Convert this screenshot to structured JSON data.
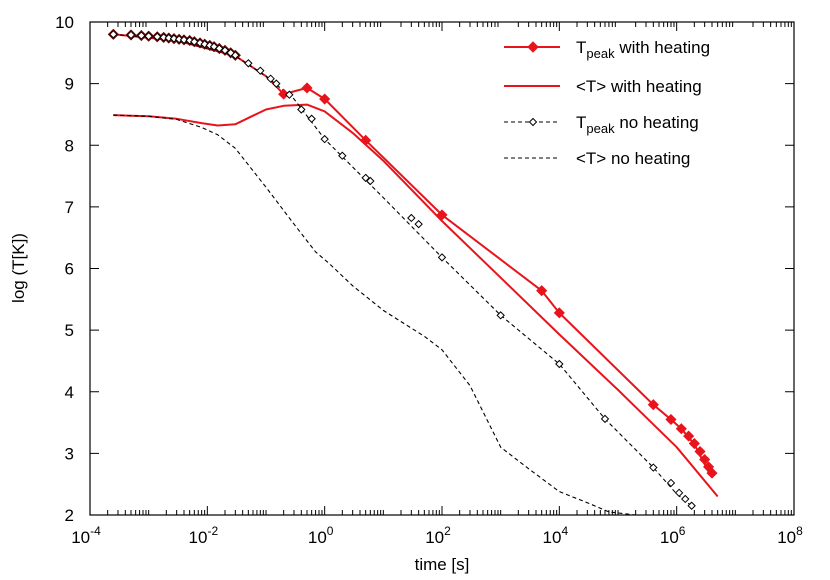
{
  "chart_data": {
    "type": "line",
    "title": "",
    "xlabel": "time [s]",
    "ylabel": "log (T[K])",
    "xscale": "log",
    "xlim": [
      0.0001,
      100000000
    ],
    "ylim": [
      2,
      10
    ],
    "x_ticks": [
      {
        "base": "10",
        "exp": "-4"
      },
      {
        "base": "10",
        "exp": "-2"
      },
      {
        "base": "10",
        "exp": "0"
      },
      {
        "base": "10",
        "exp": "2"
      },
      {
        "base": "10",
        "exp": "4"
      },
      {
        "base": "10",
        "exp": "6"
      },
      {
        "base": "10",
        "exp": "8"
      }
    ],
    "y_ticks": [
      "2",
      "3",
      "4",
      "5",
      "6",
      "7",
      "8",
      "9",
      "10"
    ],
    "grid": false,
    "legend_position": "top-right",
    "series": [
      {
        "name": "T_peak with heating",
        "legend_main": "T",
        "legend_sub": "peak",
        "legend_rest": " with heating",
        "color": "#e8141c",
        "dash": "solid",
        "marker": "diamond-filled",
        "x": [
          0.00025,
          0.003,
          0.03,
          0.1,
          0.2,
          0.5,
          1,
          5,
          100,
          5000,
          10000,
          400000,
          800000,
          1200000,
          2000000,
          3500000
        ],
        "y": [
          9.8,
          9.7,
          9.45,
          9.12,
          8.83,
          8.93,
          8.75,
          8.08,
          6.87,
          5.64,
          5.28,
          3.79,
          3.55,
          3.4,
          3.15,
          2.7
        ],
        "marker_x": [
          0.00025,
          0.0005,
          0.00075,
          0.001,
          0.0014,
          0.0018,
          0.0022,
          0.0027,
          0.0033,
          0.004,
          0.005,
          0.006,
          0.0075,
          0.009,
          0.011,
          0.013,
          0.016,
          0.02,
          0.025,
          0.03,
          0.2,
          0.5,
          1,
          5,
          100,
          5000,
          10000,
          400000,
          800000,
          1200000,
          1600000,
          2000000,
          2500000,
          3000000,
          3500000,
          4000000
        ],
        "marker_y": [
          9.8,
          9.79,
          9.78,
          9.77,
          9.76,
          9.75,
          9.74,
          9.73,
          9.72,
          9.71,
          9.7,
          9.68,
          9.66,
          9.64,
          9.62,
          9.6,
          9.57,
          9.54,
          9.5,
          9.46,
          8.83,
          8.93,
          8.75,
          8.08,
          6.87,
          5.64,
          5.28,
          3.79,
          3.55,
          3.4,
          3.28,
          3.16,
          3.03,
          2.9,
          2.78,
          2.68
        ]
      },
      {
        "name": "<T> with heating",
        "legend_main": "<T> with heating",
        "legend_sub": "",
        "legend_rest": "",
        "color": "#e8141c",
        "dash": "solid",
        "marker": "none",
        "x": [
          0.00025,
          0.001,
          0.003,
          0.008,
          0.015,
          0.03,
          0.06,
          0.1,
          0.2,
          0.5,
          1,
          3,
          10,
          100,
          1000,
          10000,
          100000,
          1000000,
          5000000
        ],
        "y": [
          8.49,
          8.47,
          8.43,
          8.36,
          8.32,
          8.34,
          8.48,
          8.58,
          8.64,
          8.66,
          8.55,
          8.2,
          7.75,
          6.77,
          5.85,
          4.93,
          4.03,
          3.1,
          2.3
        ]
      },
      {
        "name": "T_peak no heating",
        "legend_main": "T",
        "legend_sub": "peak",
        "legend_rest": " no heating",
        "color": "#000000",
        "dash": "dashed",
        "marker": "diamond-open",
        "x": [
          0.00025,
          0.003,
          0.03,
          0.1,
          0.3,
          1,
          10,
          100,
          1000,
          10000,
          60000,
          400000,
          1000000,
          1800000
        ],
        "y": [
          9.8,
          9.7,
          9.45,
          9.12,
          8.75,
          8.1,
          7.15,
          6.18,
          5.24,
          4.45,
          3.56,
          2.77,
          2.34,
          2.15
        ],
        "marker_x": [
          0.00025,
          0.0005,
          0.00075,
          0.001,
          0.0014,
          0.0018,
          0.0022,
          0.0027,
          0.0033,
          0.004,
          0.005,
          0.006,
          0.0075,
          0.009,
          0.011,
          0.013,
          0.016,
          0.02,
          0.025,
          0.03,
          0.05,
          0.08,
          0.12,
          0.15,
          0.25,
          0.4,
          0.6,
          1,
          2,
          5,
          6,
          30,
          40,
          100,
          1000,
          10000,
          60000,
          400000,
          800000,
          1100000,
          1400000,
          1800000
        ],
        "marker_y": [
          9.8,
          9.79,
          9.78,
          9.77,
          9.76,
          9.75,
          9.74,
          9.73,
          9.72,
          9.71,
          9.7,
          9.68,
          9.66,
          9.64,
          9.62,
          9.6,
          9.57,
          9.54,
          9.5,
          9.46,
          9.33,
          9.21,
          9.08,
          9.0,
          8.82,
          8.58,
          8.43,
          8.1,
          7.83,
          7.47,
          7.42,
          6.82,
          6.72,
          6.18,
          5.24,
          4.45,
          3.56,
          2.77,
          2.52,
          2.36,
          2.26,
          2.15
        ]
      },
      {
        "name": "<T> no heating",
        "legend_main": "<T> no heating",
        "legend_sub": "",
        "legend_rest": "",
        "color": "#000000",
        "dash": "dashed",
        "marker": "none",
        "x": [
          0.00025,
          0.001,
          0.003,
          0.008,
          0.015,
          0.03,
          0.1,
          0.3,
          0.7,
          1.2,
          3,
          10,
          50,
          100,
          300,
          1000,
          3000,
          10000,
          30000,
          70000,
          200000
        ],
        "y": [
          8.49,
          8.47,
          8.42,
          8.29,
          8.17,
          7.95,
          7.32,
          6.72,
          6.27,
          6.08,
          5.72,
          5.32,
          4.9,
          4.68,
          4.1,
          3.1,
          2.75,
          2.38,
          2.2,
          2.05,
          2.0
        ]
      }
    ]
  }
}
